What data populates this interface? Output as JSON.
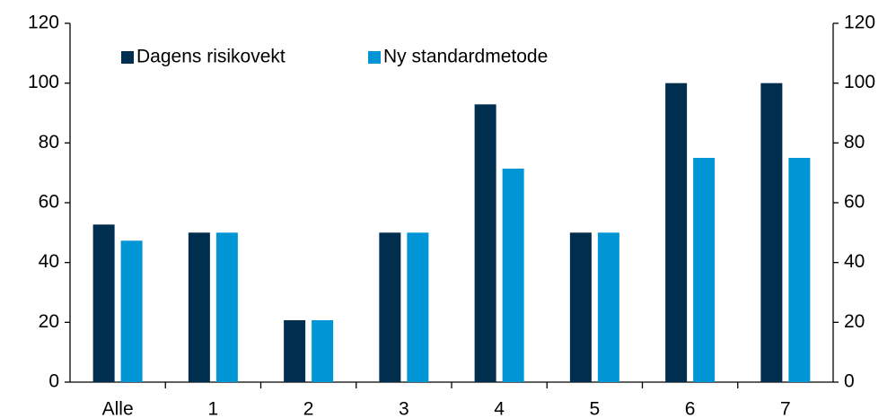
{
  "chart_data": {
    "type": "bar",
    "categories": [
      "Alle",
      "1",
      "2",
      "3",
      "4",
      "5",
      "6",
      "7"
    ],
    "series": [
      {
        "name": "Dagens risikovekt",
        "color": "#002e4f",
        "values": [
          52.7,
          50,
          20.7,
          50,
          92.9,
          50,
          100,
          100
        ]
      },
      {
        "name": "Ny standardmetode",
        "color": "#0096d6",
        "values": [
          47.3,
          50,
          20.7,
          50,
          71.4,
          50,
          75,
          75
        ]
      }
    ],
    "ylim": [
      0,
      120
    ],
    "yticks": [
      0,
      20,
      40,
      60,
      80,
      100,
      120
    ],
    "y2lim": [
      0,
      120
    ],
    "y2ticks": [
      0,
      20,
      40,
      60,
      80,
      100,
      120
    ],
    "grid": false,
    "legend": "upper left"
  }
}
